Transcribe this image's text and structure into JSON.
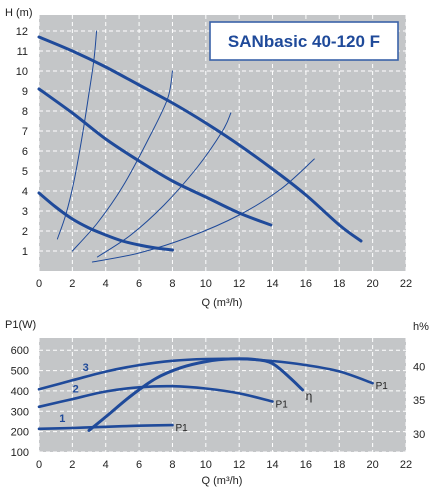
{
  "charts": [
    {
      "id": "head_flow",
      "type": "line",
      "title": "SANbasic 40-120 F",
      "ylabel": "H (m)",
      "xlabel": "Q (m³/h)",
      "xlim": [
        0,
        22
      ],
      "ylim": [
        0,
        12.8
      ],
      "x_ticks": [
        "0",
        "2",
        "4",
        "6",
        "8",
        "10",
        "12",
        "14",
        "16",
        "18",
        "20",
        "22"
      ],
      "y_ticks": [
        "1",
        "2",
        "3",
        "4",
        "5",
        "6",
        "7",
        "8",
        "9",
        "10",
        "11",
        "12"
      ],
      "grid": true,
      "series": [
        {
          "role": "pump",
          "x": [
            0,
            2,
            4,
            6,
            8,
            10,
            12,
            14,
            16,
            18,
            19.3
          ],
          "y": [
            11.7,
            11.0,
            10.2,
            9.3,
            8.4,
            7.4,
            6.3,
            5.1,
            3.8,
            2.3,
            1.5
          ]
        },
        {
          "role": "pump",
          "x": [
            0,
            2,
            4,
            6,
            8,
            10,
            12,
            13.9
          ],
          "y": [
            9.1,
            7.9,
            6.6,
            5.5,
            4.5,
            3.7,
            2.9,
            2.3
          ]
        },
        {
          "role": "pump",
          "x": [
            0,
            1,
            2,
            3,
            4,
            5,
            6,
            7,
            8
          ],
          "y": [
            3.9,
            3.2,
            2.6,
            2.15,
            1.8,
            1.5,
            1.3,
            1.15,
            1.05
          ]
        },
        {
          "role": "system",
          "x": [
            1.1,
            1.6,
            2.1,
            2.6,
            3.0,
            3.3,
            3.45
          ],
          "y": [
            1.6,
            2.8,
            4.5,
            6.8,
            8.9,
            10.6,
            12.0
          ]
        },
        {
          "role": "system",
          "x": [
            2.0,
            3.5,
            5.0,
            6.5,
            7.7,
            8.0
          ],
          "y": [
            1.0,
            2.4,
            4.2,
            6.5,
            8.6,
            10.0
          ]
        },
        {
          "role": "system",
          "x": [
            3.5,
            5.5,
            7.5,
            9.5,
            11.0,
            11.5
          ],
          "y": [
            0.7,
            1.8,
            3.3,
            5.2,
            7.0,
            7.9
          ]
        },
        {
          "role": "system",
          "x": [
            3.2,
            6.0,
            9.0,
            12.0,
            14.5,
            16.5
          ],
          "y": [
            0.45,
            0.9,
            1.7,
            2.8,
            4.1,
            5.6
          ]
        }
      ]
    },
    {
      "id": "power_efficiency",
      "type": "line",
      "ylabel_left": "P1(W)",
      "ylabel_right": "h%",
      "xlabel": "Q (m³/h)",
      "xlim": [
        0,
        22
      ],
      "ylim": [
        100,
        660
      ],
      "y2lim": [
        27.3,
        44.2
      ],
      "x_ticks": [
        "0",
        "2",
        "4",
        "6",
        "8",
        "10",
        "12",
        "14",
        "16",
        "18",
        "20",
        "22"
      ],
      "y_ticks": [
        "100",
        "200",
        "300",
        "400",
        "500",
        "600"
      ],
      "y2_ticks": [
        "30",
        "35",
        "40"
      ],
      "grid": true,
      "series": [
        {
          "name": "3",
          "end_label": "P1",
          "x": [
            0,
            2,
            4,
            6,
            8,
            10,
            12,
            14,
            16,
            18,
            20
          ],
          "y": [
            408,
            452,
            495,
            527,
            548,
            557,
            557,
            547,
            527,
            496,
            438
          ]
        },
        {
          "name": "2",
          "end_label": "P1",
          "x": [
            0,
            2,
            4,
            6,
            8,
            10,
            12,
            14
          ],
          "y": [
            322,
            360,
            397,
            418,
            423,
            412,
            388,
            348
          ]
        },
        {
          "name": "1",
          "end_label": "P1",
          "x": [
            0,
            2,
            4,
            6,
            8
          ],
          "y": [
            214,
            218,
            224,
            229,
            232
          ]
        },
        {
          "name": "η",
          "axis": "right",
          "x": [
            3.0,
            4.0,
            5.5,
            7.0,
            8.5,
            10.0,
            11.5,
            13.0,
            14.0,
            15.0,
            15.8
          ],
          "y": [
            30.5,
            32.5,
            35.6,
            38.2,
            39.8,
            40.7,
            41.1,
            41.0,
            40.4,
            38.4,
            36.5
          ]
        }
      ]
    }
  ]
}
